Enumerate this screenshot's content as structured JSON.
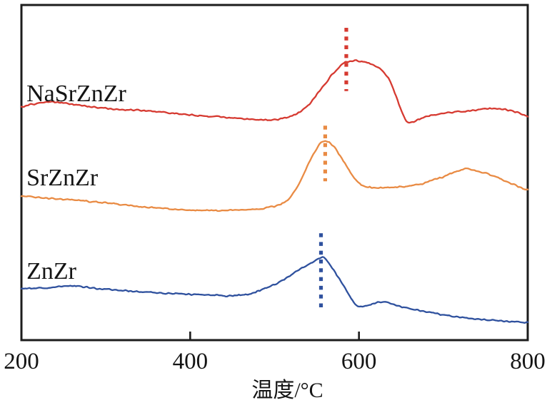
{
  "figure": {
    "background": "#ffffff",
    "frame_color": "#1c1c1c",
    "text_color": "#141414"
  },
  "chart_data": {
    "type": "line",
    "title": "",
    "xlabel": "温度/°C",
    "ylabel": "",
    "y_axis_note": "signal intensity, arbitrary units, no y ticks shown",
    "grid": false,
    "legend_position": "curve labels at left of each trace",
    "x_range": [
      200,
      800
    ],
    "y_range": [
      0,
      100
    ],
    "x_ticks": [
      {
        "value": 200,
        "label": "200",
        "tick": false
      },
      {
        "value": 400,
        "label": "400",
        "tick": true
      },
      {
        "value": 600,
        "label": "600",
        "tick": true
      },
      {
        "value": 800,
        "label": "800",
        "tick": false
      }
    ],
    "series": [
      {
        "name": "NaSrZnZr",
        "color": "#d63a31",
        "label_pos": {
          "x": 206,
          "y": 71.3
        },
        "peak_marker": {
          "x": 585,
          "y1": 74.3,
          "y2": 93.2
        },
        "peak_temp_c": 585,
        "points": [
          [
            200,
            69.6
          ],
          [
            230,
            71.1
          ],
          [
            259,
            70.4
          ],
          [
            301,
            69.1
          ],
          [
            344,
            68.5
          ],
          [
            394,
            67.4
          ],
          [
            454,
            66.2
          ],
          [
            496,
            65.7
          ],
          [
            521,
            67.0
          ],
          [
            538,
            69.6
          ],
          [
            555,
            74.9
          ],
          [
            568,
            79.1
          ],
          [
            580,
            82.3
          ],
          [
            589,
            83.2
          ],
          [
            597,
            83.4
          ],
          [
            610,
            82.8
          ],
          [
            623,
            81.3
          ],
          [
            635,
            78.1
          ],
          [
            644,
            72.8
          ],
          [
            652,
            67.4
          ],
          [
            658,
            64.9
          ],
          [
            669,
            65.7
          ],
          [
            682,
            66.8
          ],
          [
            707,
            67.9
          ],
          [
            733,
            68.5
          ],
          [
            758,
            69.1
          ],
          [
            775,
            68.7
          ],
          [
            788,
            67.9
          ],
          [
            800,
            66.6
          ]
        ]
      },
      {
        "name": "SrZnZr",
        "color": "#e98b44",
        "label_pos": {
          "x": 206,
          "y": 46.2
        },
        "peak_marker": {
          "x": 560,
          "y1": 47.4,
          "y2": 64.0
        },
        "peak_temp_c": 560,
        "points": [
          [
            200,
            43.0
          ],
          [
            234,
            42.3
          ],
          [
            268,
            41.7
          ],
          [
            301,
            40.9
          ],
          [
            335,
            40.0
          ],
          [
            377,
            39.1
          ],
          [
            420,
            38.7
          ],
          [
            462,
            38.9
          ],
          [
            487,
            39.4
          ],
          [
            504,
            40.2
          ],
          [
            517,
            42.3
          ],
          [
            530,
            47.2
          ],
          [
            542,
            53.6
          ],
          [
            553,
            58.3
          ],
          [
            560,
            59.4
          ],
          [
            568,
            58.3
          ],
          [
            576,
            55.7
          ],
          [
            585,
            52.1
          ],
          [
            593,
            48.7
          ],
          [
            601,
            46.6
          ],
          [
            610,
            45.7
          ],
          [
            623,
            45.5
          ],
          [
            648,
            45.7
          ],
          [
            665,
            46.2
          ],
          [
            682,
            47.2
          ],
          [
            699,
            48.7
          ],
          [
            716,
            50.4
          ],
          [
            726,
            51.1
          ],
          [
            737,
            50.6
          ],
          [
            749,
            49.8
          ],
          [
            762,
            48.7
          ],
          [
            775,
            47.2
          ],
          [
            787,
            46.0
          ],
          [
            800,
            44.9
          ]
        ]
      },
      {
        "name": "ZnZr",
        "color": "#2f519e",
        "label_pos": {
          "x": 206,
          "y": 18.3
        },
        "peak_marker": {
          "x": 555,
          "y1": 8.5,
          "y2": 31.9
        },
        "peak_temp_c": 555,
        "points": [
          [
            200,
            15.3
          ],
          [
            234,
            15.7
          ],
          [
            263,
            16.2
          ],
          [
            293,
            15.3
          ],
          [
            327,
            14.7
          ],
          [
            369,
            14.0
          ],
          [
            411,
            13.6
          ],
          [
            445,
            13.2
          ],
          [
            470,
            13.8
          ],
          [
            487,
            15.3
          ],
          [
            500,
            16.6
          ],
          [
            513,
            18.3
          ],
          [
            525,
            20.4
          ],
          [
            536,
            22.1
          ],
          [
            545,
            23.2
          ],
          [
            552,
            24.3
          ],
          [
            557,
            24.7
          ],
          [
            563,
            23.2
          ],
          [
            572,
            20.2
          ],
          [
            580,
            16.8
          ],
          [
            589,
            13.2
          ],
          [
            597,
            10.4
          ],
          [
            606,
            10.0
          ],
          [
            614,
            10.6
          ],
          [
            624,
            11.3
          ],
          [
            635,
            11.1
          ],
          [
            648,
            10.2
          ],
          [
            665,
            9.1
          ],
          [
            682,
            8.3
          ],
          [
            707,
            7.2
          ],
          [
            733,
            6.4
          ],
          [
            758,
            6.0
          ],
          [
            779,
            5.5
          ],
          [
            800,
            5.3
          ]
        ]
      }
    ]
  }
}
